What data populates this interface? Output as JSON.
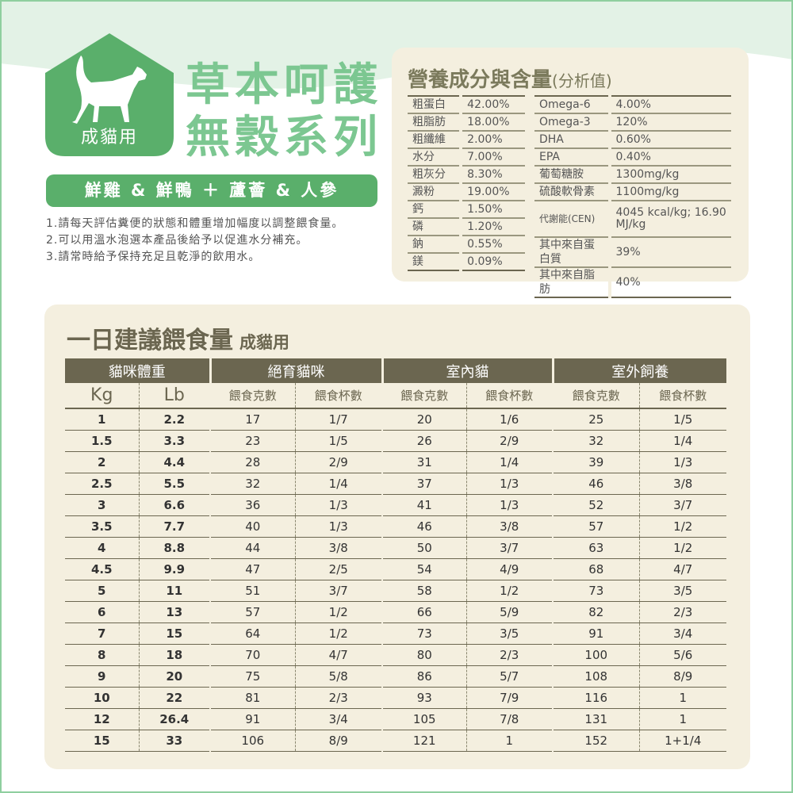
{
  "badge": {
    "label": "成貓用",
    "icon": "cat-icon"
  },
  "title": {
    "line1": "草本呵護",
    "line2": "無穀系列"
  },
  "flavor": "鮮雞 & 鮮鴨 ＋ 蘆薈 & 人參",
  "notes": [
    "1.請每天評估糞便的狀態和體重增加幅度以調整餵食量。",
    "2.可以用溫水泡選本產品後給予以促進水分補充。",
    "3.請常時給予保持充足且乾淨的飲用水。"
  ],
  "nutrition": {
    "title": "營養成分與含量",
    "title_suffix": "(分析值)",
    "left": [
      [
        "粗蛋白",
        "42.00%"
      ],
      [
        "粗脂肪",
        "18.00%"
      ],
      [
        "粗纖維",
        "2.00%"
      ],
      [
        "水分",
        "7.00%"
      ],
      [
        "粗灰分",
        "8.30%"
      ],
      [
        "澱粉",
        "19.00%"
      ],
      [
        "鈣",
        "1.50%"
      ],
      [
        "磷",
        "1.20%"
      ],
      [
        "鈉",
        "0.55%"
      ],
      [
        "鎂",
        "0.09%"
      ]
    ],
    "right": [
      [
        "Omega-6",
        "4.00%"
      ],
      [
        "Omega-3",
        "120%"
      ],
      [
        "DHA",
        "0.60%"
      ],
      [
        "EPA",
        "0.40%"
      ],
      [
        "葡萄糖胺",
        "1300mg/kg"
      ],
      [
        "硫酸軟骨素",
        "1100mg/kg"
      ],
      [
        "代謝能(CEN)",
        "4045 kcal/kg; 16.90 MJ/kg"
      ],
      [
        "其中來自蛋白質",
        "39%"
      ],
      [
        "其中來自脂肪",
        "40%"
      ]
    ]
  },
  "feeding": {
    "title": "一日建議餵食量",
    "subtitle": "成貓用",
    "groups": [
      "貓咪體重",
      "絕育貓咪",
      "室內貓",
      "室外飼養"
    ],
    "subheaders": [
      "Kg",
      "Lb",
      "餵食克數",
      "餵食杯數",
      "餵食克數",
      "餵食杯數",
      "餵食克數",
      "餵食杯數"
    ],
    "rows": [
      [
        "1",
        "2.2",
        "17",
        "1/7",
        "20",
        "1/6",
        "25",
        "1/5"
      ],
      [
        "1.5",
        "3.3",
        "23",
        "1/5",
        "26",
        "2/9",
        "32",
        "1/4"
      ],
      [
        "2",
        "4.4",
        "28",
        "2/9",
        "31",
        "1/4",
        "39",
        "1/3"
      ],
      [
        "2.5",
        "5.5",
        "32",
        "1/4",
        "37",
        "1/3",
        "46",
        "3/8"
      ],
      [
        "3",
        "6.6",
        "36",
        "1/3",
        "41",
        "1/3",
        "52",
        "3/7"
      ],
      [
        "3.5",
        "7.7",
        "40",
        "1/3",
        "46",
        "3/8",
        "57",
        "1/2"
      ],
      [
        "4",
        "8.8",
        "44",
        "3/8",
        "50",
        "3/7",
        "63",
        "1/2"
      ],
      [
        "4.5",
        "9.9",
        "47",
        "2/5",
        "54",
        "4/9",
        "68",
        "4/7"
      ],
      [
        "5",
        "11",
        "51",
        "3/7",
        "58",
        "1/2",
        "73",
        "3/5"
      ],
      [
        "6",
        "13",
        "57",
        "1/2",
        "66",
        "5/9",
        "82",
        "2/3"
      ],
      [
        "7",
        "15",
        "64",
        "1/2",
        "73",
        "3/5",
        "91",
        "3/4"
      ],
      [
        "8",
        "18",
        "70",
        "4/7",
        "80",
        "2/3",
        "100",
        "5/6"
      ],
      [
        "9",
        "20",
        "75",
        "5/8",
        "86",
        "5/7",
        "108",
        "8/9"
      ],
      [
        "10",
        "22",
        "81",
        "2/3",
        "93",
        "7/9",
        "116",
        "1"
      ],
      [
        "12",
        "26.4",
        "91",
        "3/4",
        "105",
        "7/8",
        "131",
        "1"
      ],
      [
        "15",
        "33",
        "106",
        "8/9",
        "121",
        "1",
        "152",
        "1+1/4"
      ]
    ]
  },
  "colors": {
    "green": "#5aaf6b",
    "title_green": "#7cc791",
    "panel": "#f4efdf",
    "header": "#6b6650"
  }
}
